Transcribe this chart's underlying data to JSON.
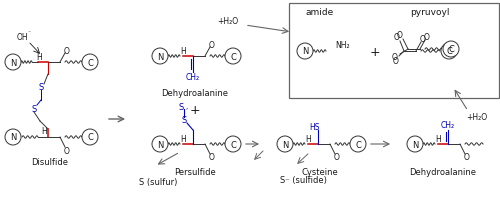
{
  "bg_color": "#ffffff",
  "text_color": "#1a1a1a",
  "red_color": "#cc0000",
  "blue_color": "#0000bb",
  "gray_color": "#666666",
  "structures": {
    "disulfide_label": "Disulfide",
    "dehydroalanine_label": "Dehydroalanine",
    "persulfide_label": "Persulfide",
    "s_sulfur_label": "S (sulfur)",
    "cysteine_label": "Cysteine",
    "s_sulfide_label": "S⁻ (sulfide)",
    "dehydroalanine2_label": "Dehydroalanine",
    "amide_label": "amide",
    "pyruvoyl_label": "pyruvoyl",
    "plus_h2o_top": "+H₂O",
    "plus_h2o_right": "+H₂O"
  }
}
